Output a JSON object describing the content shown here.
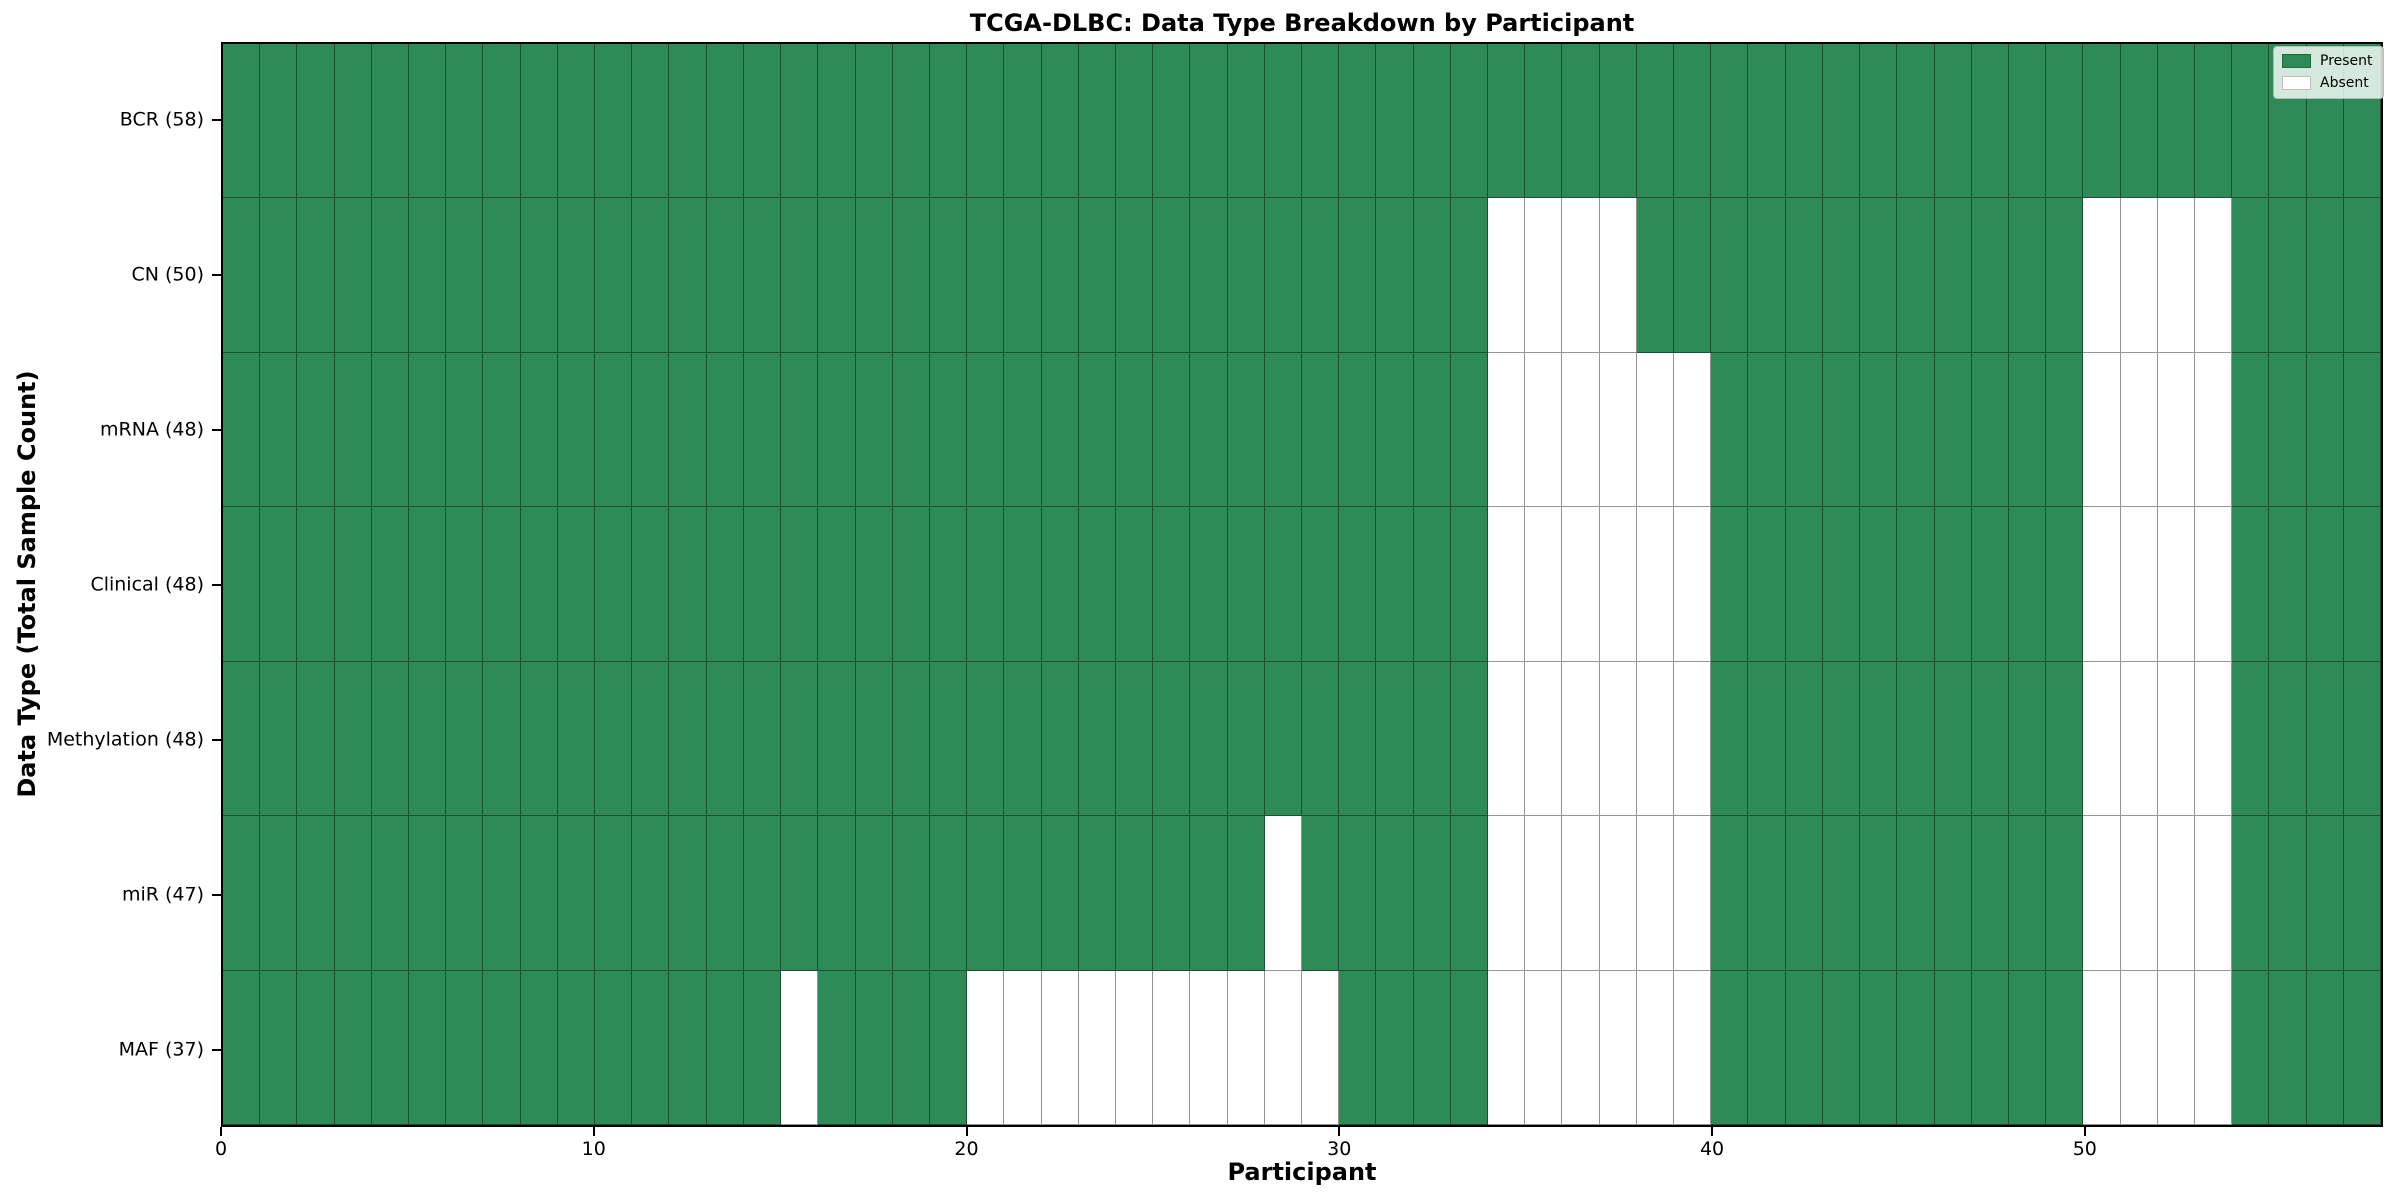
{
  "title": "TCGA-DLBC: Data Type Breakdown by Participant",
  "chart_data": {
    "type": "heatmap",
    "title": "TCGA-DLBC: Data Type Breakdown by Participant",
    "xlabel": "Participant",
    "ylabel": "Data Type (Total Sample Count)",
    "x_ticks": [
      0,
      10,
      20,
      30,
      40,
      50
    ],
    "x_range": [
      0,
      58
    ],
    "n_participants": 58,
    "grid": true,
    "legend_position": "upper right",
    "legend_entries": [
      {
        "label": "Present",
        "color": "#2e8b57"
      },
      {
        "label": "Absent",
        "color": "#ffffff"
      }
    ],
    "colors": {
      "present": "#2e8b57",
      "absent": "#ffffff",
      "cell_edge": "rgba(0,0,0,0.42)",
      "spine": "#000000"
    },
    "rows": [
      {
        "label": "BCR (58)",
        "data_type": "BCR",
        "total_samples": 58,
        "absent_participants": []
      },
      {
        "label": "CN (50)",
        "data_type": "CN",
        "total_samples": 50,
        "absent_participants": [
          34,
          35,
          36,
          37,
          50,
          51,
          52,
          53
        ]
      },
      {
        "label": "mRNA (48)",
        "data_type": "mRNA",
        "total_samples": 48,
        "absent_participants": [
          34,
          35,
          36,
          37,
          38,
          39,
          50,
          51,
          52,
          53
        ]
      },
      {
        "label": "Clinical (48)",
        "data_type": "Clinical",
        "total_samples": 48,
        "absent_participants": [
          34,
          35,
          36,
          37,
          38,
          39,
          50,
          51,
          52,
          53
        ]
      },
      {
        "label": "Methylation (48)",
        "data_type": "Methylation",
        "total_samples": 48,
        "absent_participants": [
          34,
          35,
          36,
          37,
          38,
          39,
          50,
          51,
          52,
          53
        ]
      },
      {
        "label": "miR (47)",
        "data_type": "miR",
        "total_samples": 47,
        "absent_participants": [
          28,
          34,
          35,
          36,
          37,
          38,
          39,
          50,
          51,
          52,
          53
        ]
      },
      {
        "label": "MAF (37)",
        "data_type": "MAF",
        "total_samples": 37,
        "absent_participants": [
          15,
          20,
          21,
          22,
          23,
          24,
          25,
          26,
          27,
          28,
          29,
          34,
          35,
          36,
          37,
          38,
          39,
          50,
          51,
          52,
          53
        ]
      }
    ]
  }
}
